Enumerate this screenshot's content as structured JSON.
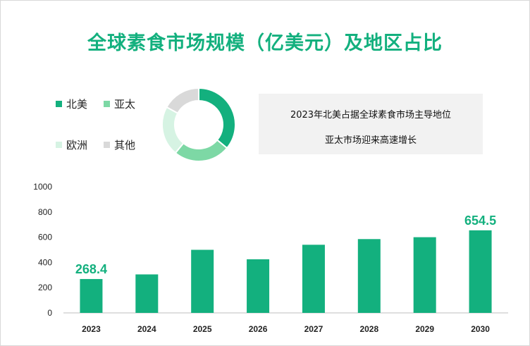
{
  "title": "全球素食市场规模（亿美元）及地区占比",
  "info": {
    "line1": "2023年北美占据全球素食市场主导地位",
    "line2": "亚太市场迎来高速增长"
  },
  "colors": {
    "bar": "#13b07e",
    "title": "#13b07e",
    "label": "#13b07e",
    "na": "#13b07e",
    "apac": "#7dd8a5",
    "europe": "#d6f3e3",
    "other": "#d9d9d9"
  },
  "region_share": {
    "type": "pie",
    "legend": [
      {
        "name": "北美",
        "color": "#13b07e"
      },
      {
        "name": "亚太",
        "color": "#7dd8a5"
      },
      {
        "name": "欧洲",
        "color": "#d6f3e3"
      },
      {
        "name": "其他",
        "color": "#d9d9d9"
      }
    ],
    "slices": [
      {
        "name": "北美",
        "value": 36,
        "color": "#13b07e"
      },
      {
        "name": "亚太",
        "value": 25,
        "color": "#7dd8a5"
      },
      {
        "name": "欧洲",
        "value": 22,
        "color": "#d6f3e3"
      },
      {
        "name": "其他",
        "value": 17,
        "color": "#d9d9d9"
      }
    ]
  },
  "chart_data": {
    "type": "bar",
    "categories": [
      "2023",
      "2024",
      "2025",
      "2026",
      "2027",
      "2028",
      "2029",
      "2030"
    ],
    "values": [
      268.4,
      305,
      500,
      425,
      540,
      585,
      600,
      654.5
    ],
    "labels": [
      "268.4",
      "",
      "",
      "",
      "",
      "",
      "",
      "654.5"
    ],
    "ylim": [
      0,
      1000
    ],
    "yticks": [
      0,
      200,
      400,
      600,
      800,
      1000
    ],
    "xlabel": "",
    "ylabel": "",
    "grid": false
  }
}
